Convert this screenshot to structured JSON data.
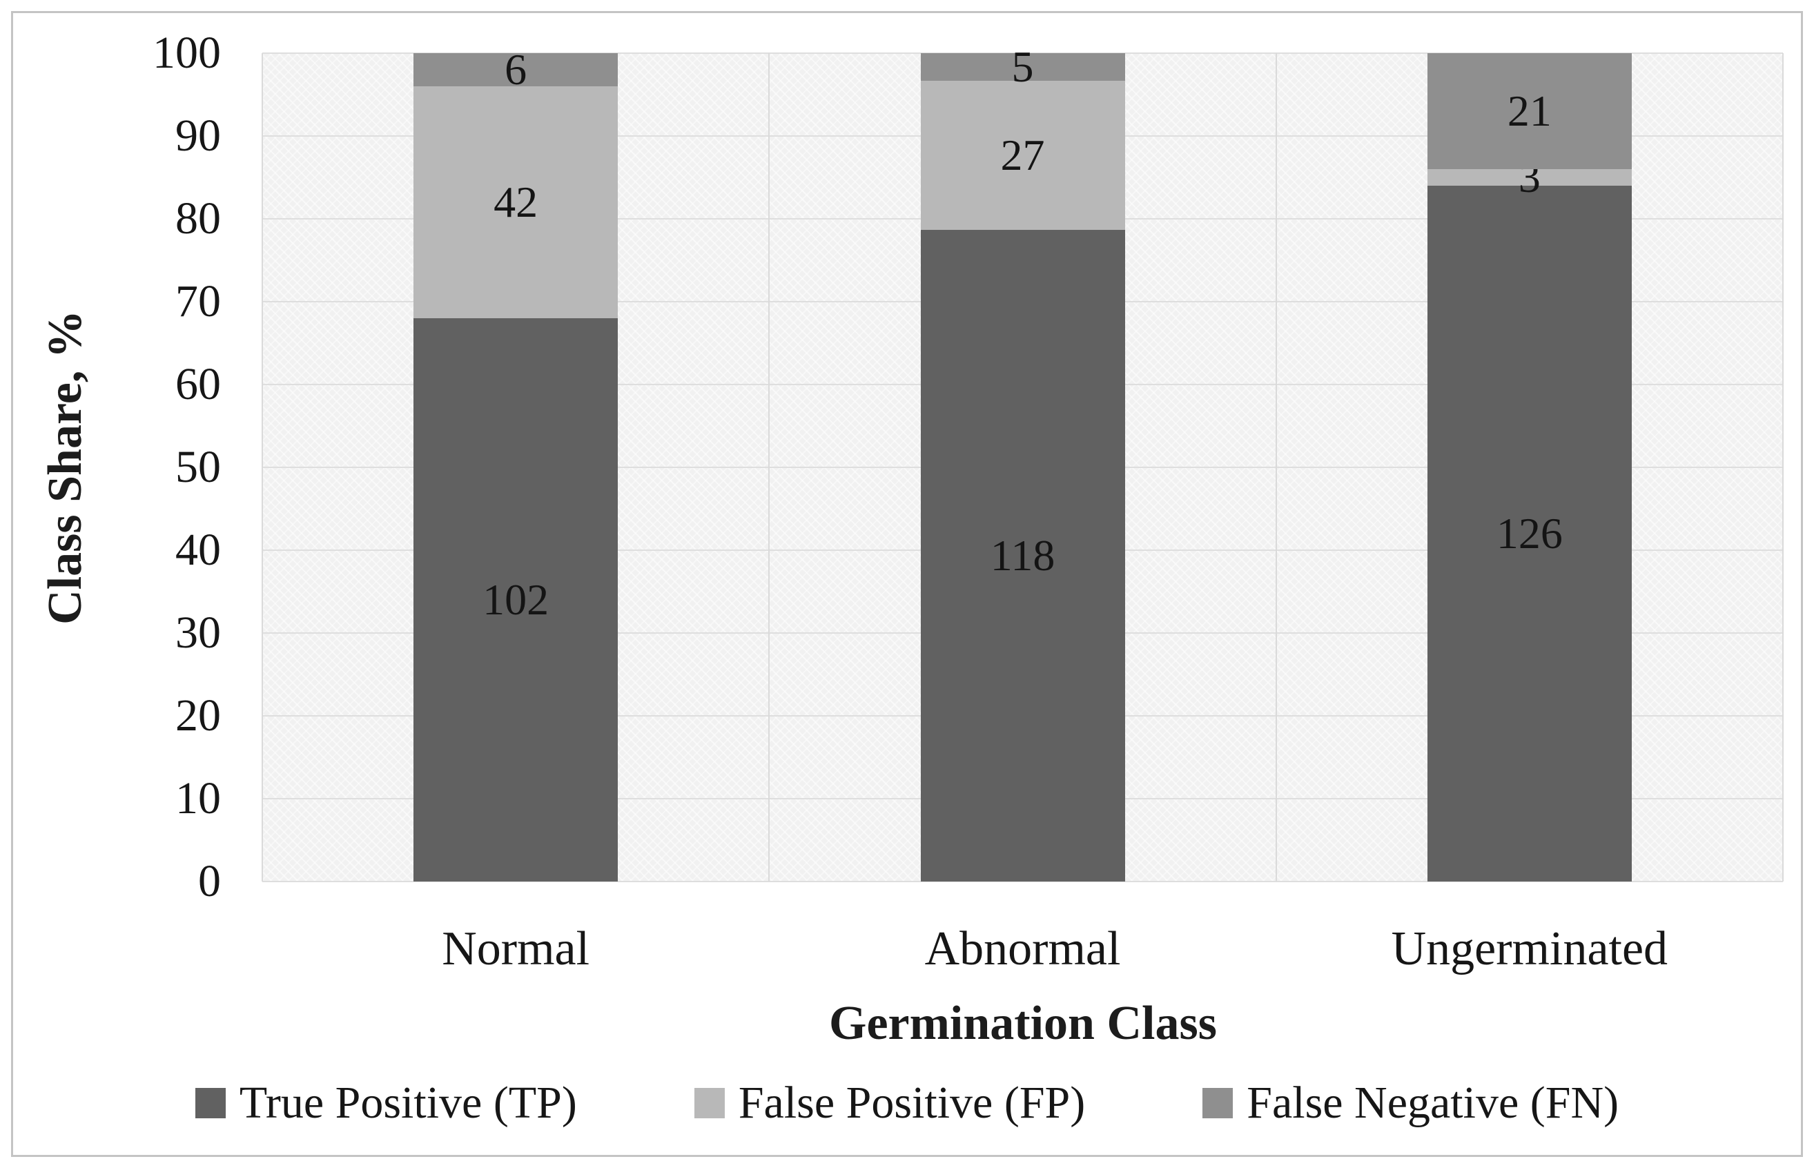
{
  "chart_data": {
    "type": "bar",
    "variant": "stacked-percent",
    "title": "",
    "xlabel": "Germination Class",
    "ylabel": "Class Share, %",
    "categories": [
      "Normal",
      "Abnormal",
      "Ungerminated"
    ],
    "series": [
      {
        "name": "True Positive (TP)",
        "color": "#616161",
        "values": [
          102,
          118,
          126
        ]
      },
      {
        "name": "False Positive (FP)",
        "color": "#b8b8b8",
        "values": [
          42,
          27,
          3
        ]
      },
      {
        "name": "False Negative (FN)",
        "color": "#8f8f8f",
        "values": [
          6,
          5,
          21
        ]
      }
    ],
    "yticks": [
      0,
      10,
      20,
      30,
      40,
      50,
      60,
      70,
      80,
      90,
      100
    ],
    "ylim": [
      0,
      100
    ],
    "grid": true,
    "legend_position": "bottom"
  },
  "colors": {
    "figure_background": "#ffffff",
    "plot_background": "#f1f1f1",
    "gridline": "#dedede",
    "frame_border": "#c4c4c4",
    "text": "#1c1c1c"
  }
}
